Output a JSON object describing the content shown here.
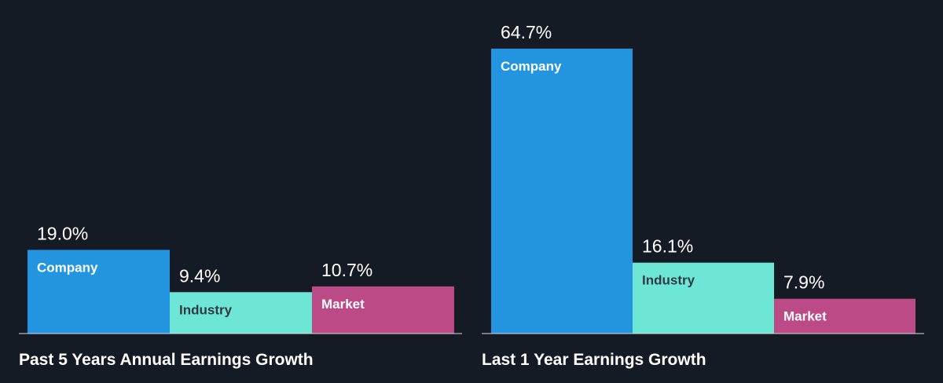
{
  "colors": {
    "background": "#151b24",
    "company": "#2394e0",
    "industry": "#6ee6d6",
    "market": "#bb4a87",
    "baseline": "#d7dbe0",
    "text": "#ffffff",
    "industry_label_text": "#2e3a44"
  },
  "chart_data": [
    {
      "type": "bar",
      "title": "Past 5 Years Annual Earnings Growth",
      "categories": [
        "Company",
        "Industry",
        "Market"
      ],
      "values": [
        19.0,
        9.4,
        10.7
      ],
      "value_labels": [
        "19.0%",
        "9.4%",
        "10.7%"
      ],
      "unit": "%",
      "ylim": [
        0,
        70
      ],
      "grid": false
    },
    {
      "type": "bar",
      "title": "Last 1 Year Earnings Growth",
      "categories": [
        "Company",
        "Industry",
        "Market"
      ],
      "values": [
        64.7,
        16.1,
        7.9
      ],
      "value_labels": [
        "64.7%",
        "16.1%",
        "7.9%"
      ],
      "unit": "%",
      "ylim": [
        0,
        70
      ],
      "grid": false
    }
  ]
}
